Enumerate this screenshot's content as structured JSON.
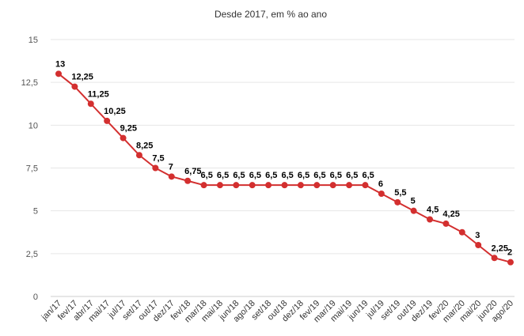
{
  "chart_data": {
    "type": "line",
    "title": "Desde 2017, em % ao ano",
    "xlabel": "",
    "ylabel": "",
    "ylim": [
      0,
      15
    ],
    "yticks": [
      "0",
      "2,5",
      "5",
      "7,5",
      "10",
      "12,5",
      "15"
    ],
    "yticks_values": [
      0,
      2.5,
      5,
      7.5,
      10,
      12.5,
      15
    ],
    "grid": true,
    "color": "#d32f2f",
    "categories": [
      "jan/17",
      "fev/17",
      "abr/17",
      "mai/17",
      "jul/17",
      "set/17",
      "out/17",
      "dez/17",
      "fev/18",
      "mar/18",
      "mai/18",
      "jun/18",
      "ago/18",
      "set/18",
      "out/18",
      "dez/18",
      "fev/19",
      "mar/19",
      "mai/19",
      "jun/19",
      "jul/19",
      "set/19",
      "out/19",
      "dez/19",
      "fev/20",
      "mar/20",
      "mai/20",
      "jun/20",
      "ago/20"
    ],
    "values": [
      13,
      12.25,
      11.25,
      10.25,
      9.25,
      8.25,
      7.5,
      7,
      6.75,
      6.5,
      6.5,
      6.5,
      6.5,
      6.5,
      6.5,
      6.5,
      6.5,
      6.5,
      6.5,
      6.5,
      6,
      5.5,
      5,
      4.5,
      4.25,
      3.75,
      3,
      2.25,
      2
    ],
    "labels": [
      "13",
      "12,25",
      "11,25",
      "10,25",
      "9,25",
      "8,25",
      "7,5",
      "7",
      "6,75",
      "6,5",
      "6,5",
      "6,5",
      "6,5",
      "6,5",
      "6,5",
      "6,5",
      "6,5",
      "6,5",
      "6,5",
      "6,5",
      "6",
      "5,5",
      "5",
      "4,5",
      "4,25",
      "",
      "3",
      "2,25",
      "2"
    ]
  }
}
